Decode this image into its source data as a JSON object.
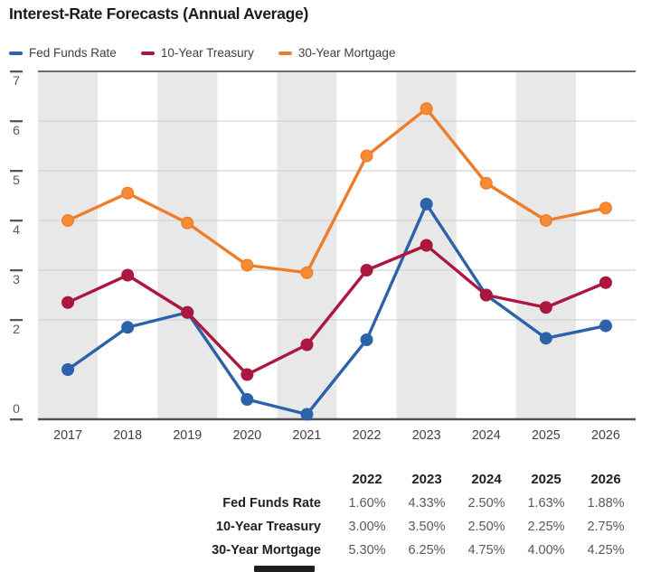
{
  "chart_data": {
    "type": "line",
    "title": "Interest-Rate Forecasts (Annual Average)",
    "x_labels": [
      "2017",
      "2018",
      "2019",
      "2020",
      "2021",
      "2022",
      "2023",
      "2024",
      "2025",
      "2026"
    ],
    "ylim": [
      0,
      7
    ],
    "yticks": [
      0,
      2,
      3,
      4,
      5,
      6,
      7
    ],
    "grid": "horizontal",
    "band_style": "alternating vertical year bands, odd years shaded gray",
    "band_color": "#e8e8e9",
    "legend_position": "top-left",
    "series": [
      {
        "name": "Fed Funds Rate",
        "color": "#2b62a9",
        "values": [
          1.0,
          1.85,
          2.15,
          0.4,
          0.1,
          1.6,
          4.33,
          2.5,
          1.63,
          1.88
        ]
      },
      {
        "name": "10-Year Treasury",
        "color": "#ab173f",
        "values": [
          2.35,
          2.9,
          2.15,
          0.9,
          1.5,
          3.0,
          3.5,
          2.5,
          2.25,
          2.75
        ]
      },
      {
        "name": "30-Year Mortgage",
        "color": "#ee7d2b",
        "marker_color": "#f68b33",
        "values": [
          4.0,
          4.55,
          3.95,
          3.1,
          2.95,
          5.3,
          6.25,
          4.75,
          4.0,
          4.25
        ]
      }
    ]
  },
  "table": {
    "columns": [
      "2022",
      "2023",
      "2024",
      "2025",
      "2026"
    ],
    "rows": [
      {
        "label": "Fed Funds Rate",
        "values": [
          "1.60%",
          "4.33%",
          "2.50%",
          "1.63%",
          "1.88%"
        ]
      },
      {
        "label": "10-Year Treasury",
        "values": [
          "3.00%",
          "3.50%",
          "2.50%",
          "2.25%",
          "2.75%"
        ]
      },
      {
        "label": "30-Year Mortgage",
        "values": [
          "5.30%",
          "6.25%",
          "4.75%",
          "4.00%",
          "4.25%"
        ]
      }
    ]
  }
}
